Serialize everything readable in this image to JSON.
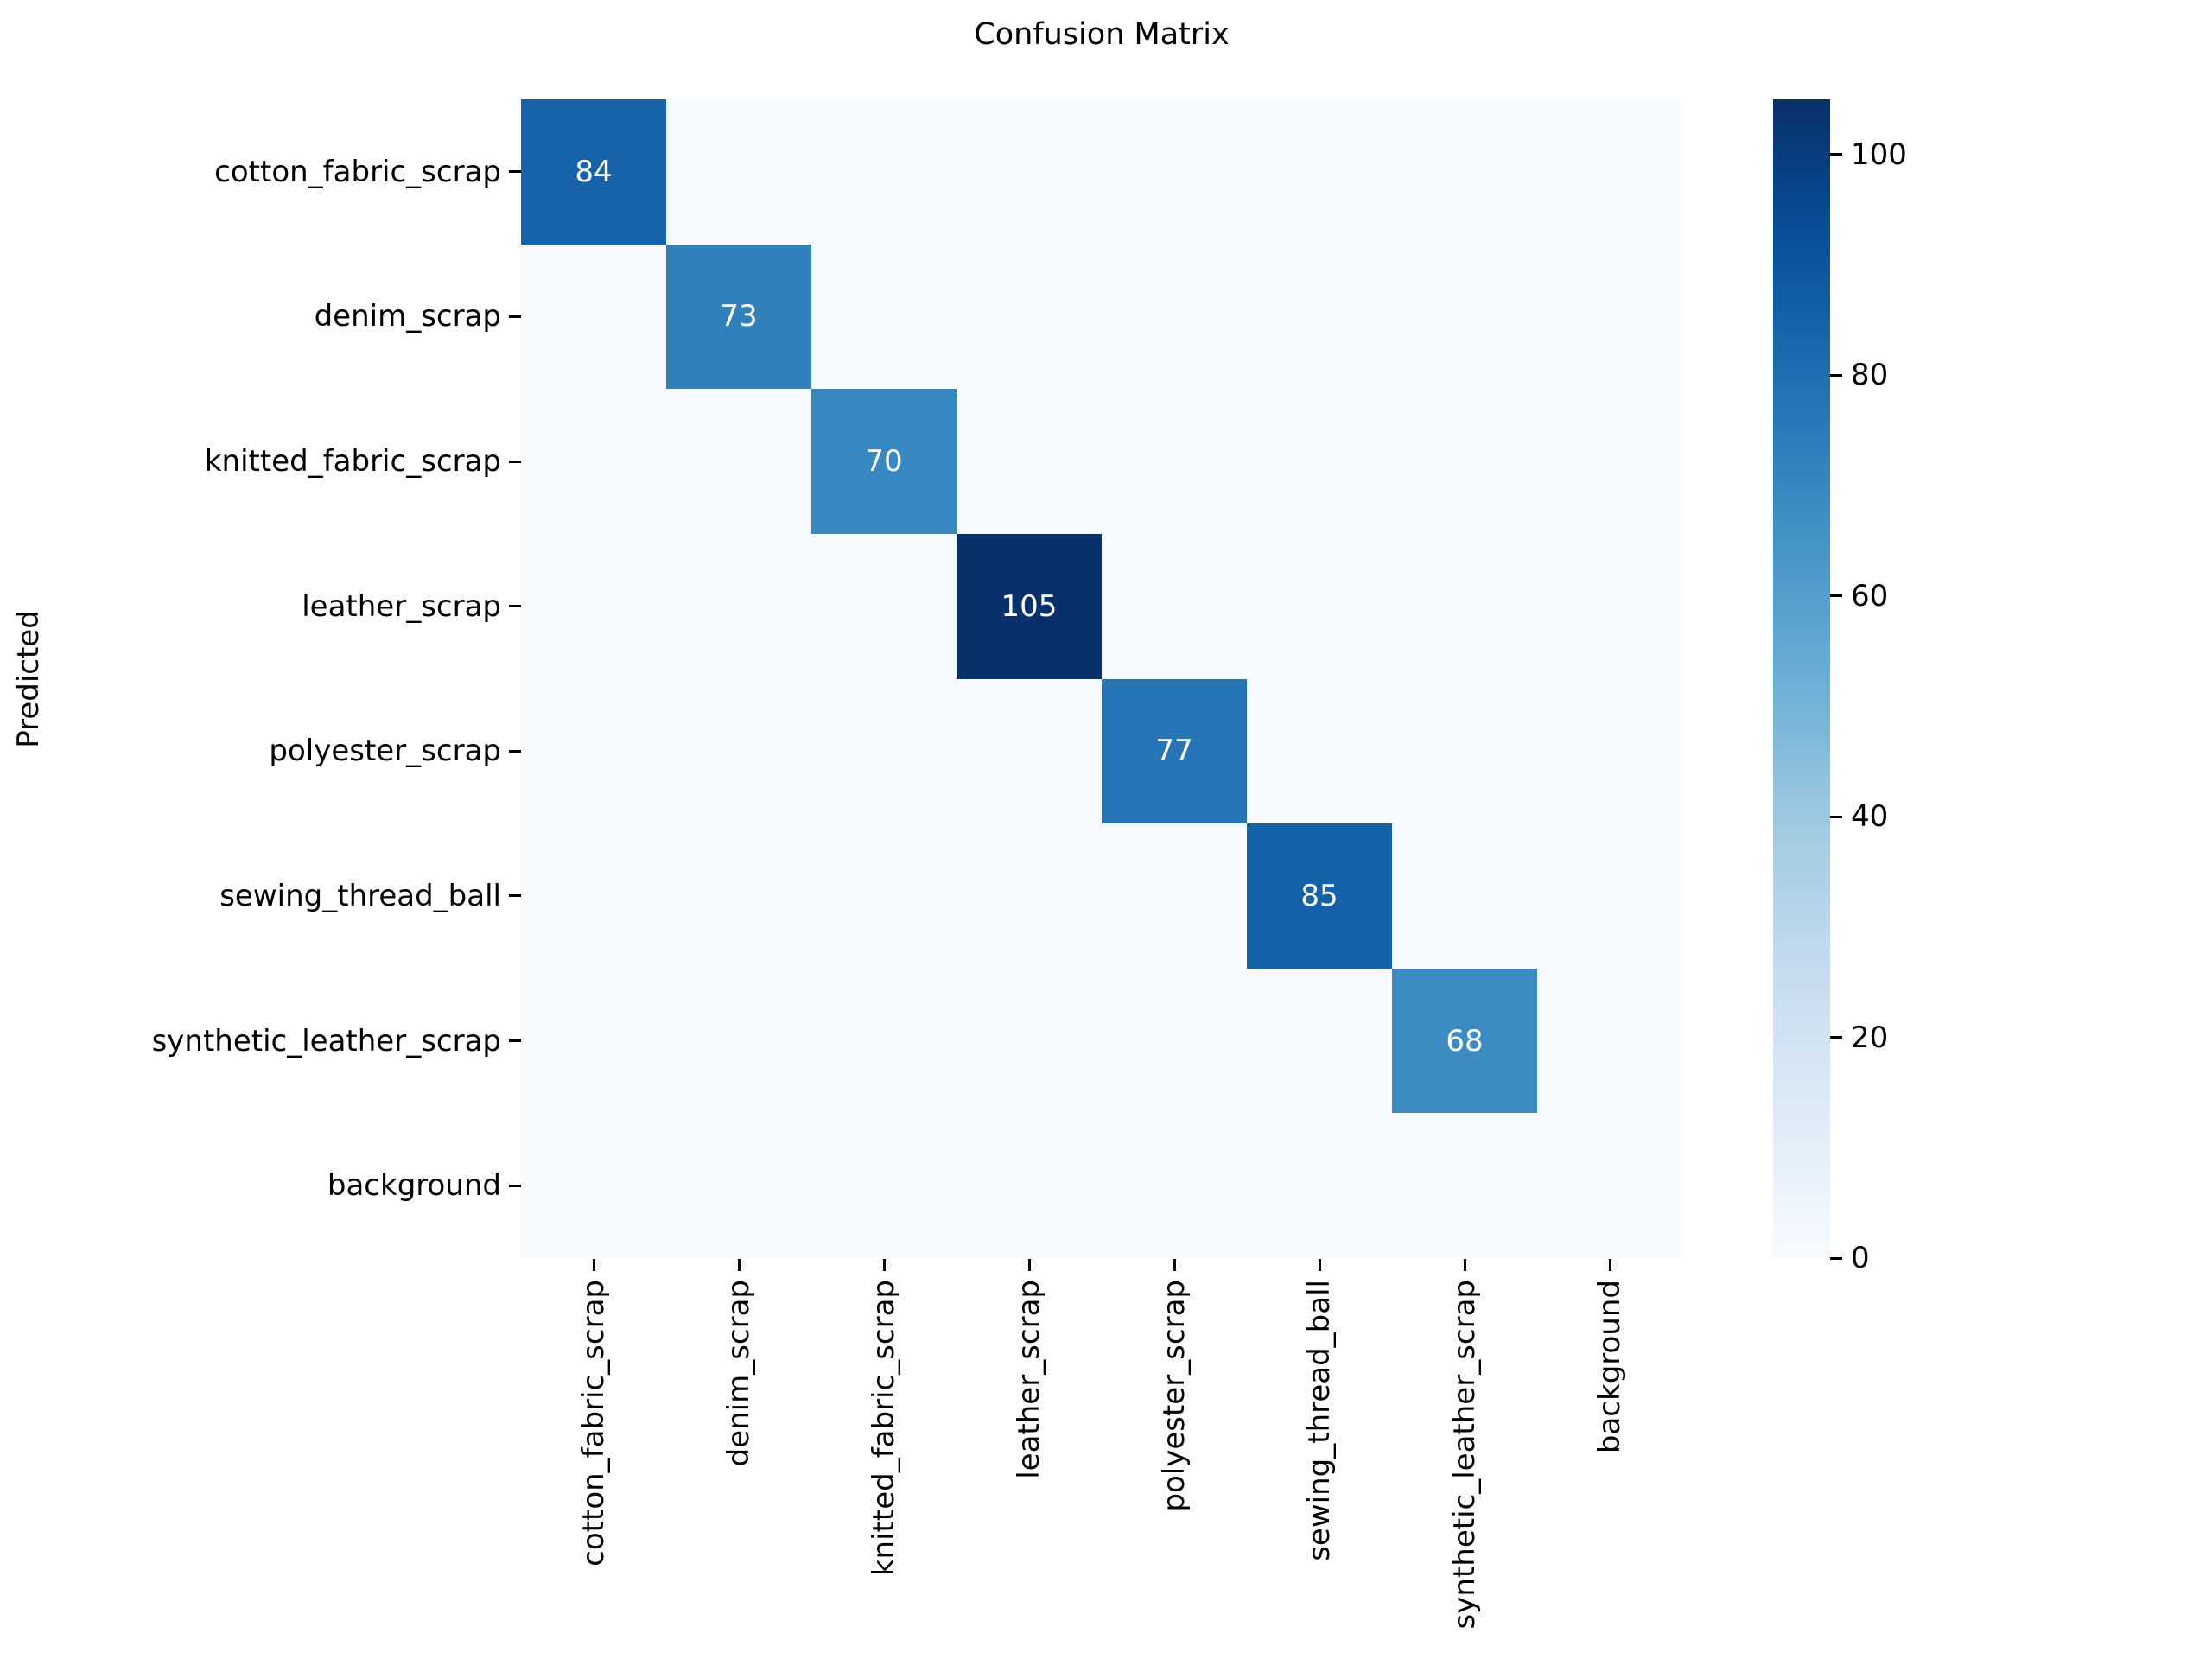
{
  "figure": {
    "title": "Confusion Matrix",
    "background_color": "#ffffff"
  },
  "chart_data": {
    "type": "heatmap",
    "title": "Confusion Matrix",
    "xlabel": "",
    "ylabel": "Predicted",
    "x_categories": [
      "cotton_fabric_scrap",
      "denim_scrap",
      "knitted_fabric_scrap",
      "leather_scrap",
      "polyester_scrap",
      "sewing_thread_ball",
      "synthetic_leather_scrap",
      "background"
    ],
    "y_categories": [
      "cotton_fabric_scrap",
      "denim_scrap",
      "knitted_fabric_scrap",
      "leather_scrap",
      "polyester_scrap",
      "sewing_thread_ball",
      "synthetic_leather_scrap",
      "background"
    ],
    "matrix": [
      [
        84,
        0,
        0,
        0,
        0,
        0,
        0,
        0
      ],
      [
        0,
        73,
        0,
        0,
        0,
        0,
        0,
        0
      ],
      [
        0,
        0,
        70,
        0,
        0,
        0,
        0,
        0
      ],
      [
        0,
        0,
        0,
        105,
        0,
        0,
        0,
        0
      ],
      [
        0,
        0,
        0,
        0,
        77,
        0,
        0,
        0
      ],
      [
        0,
        0,
        0,
        0,
        0,
        85,
        0,
        0
      ],
      [
        0,
        0,
        0,
        0,
        0,
        0,
        68,
        0
      ],
      [
        0,
        0,
        0,
        0,
        0,
        0,
        0,
        0
      ]
    ],
    "annotated_values": [
      84,
      73,
      70,
      105,
      77,
      85,
      68
    ],
    "colormap": "Blues",
    "vmin": 0,
    "vmax": 105,
    "colorbar_ticks": [
      0,
      20,
      40,
      60,
      80,
      100
    ],
    "legend_position": "colorbar-right",
    "grid": false,
    "zero_cell_color": "#f7fbff",
    "annotation_text_color": "#ffffff",
    "tick_color": "#000000",
    "text_color": "#000000",
    "value_colors": {
      "68": "#3c8cc3",
      "70": "#3787c0",
      "73": "#3080bc",
      "77": "#2575b7",
      "84": "#1764ab",
      "85": "#1562a9",
      "105": "#08306b"
    },
    "colorbar_gradient": [
      {
        "pos": 0.0,
        "color": "#f7fbff"
      },
      {
        "pos": 0.125,
        "color": "#deebf7"
      },
      {
        "pos": 0.25,
        "color": "#c6dbef"
      },
      {
        "pos": 0.375,
        "color": "#9ecae1"
      },
      {
        "pos": 0.5,
        "color": "#6baed6"
      },
      {
        "pos": 0.625,
        "color": "#4292c6"
      },
      {
        "pos": 0.75,
        "color": "#2171b5"
      },
      {
        "pos": 0.875,
        "color": "#08519c"
      },
      {
        "pos": 1.0,
        "color": "#08306b"
      }
    ]
  }
}
